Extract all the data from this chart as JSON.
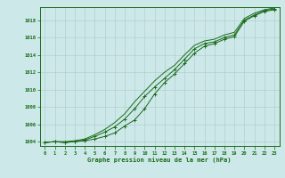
{
  "x": [
    0,
    1,
    2,
    3,
    4,
    5,
    6,
    7,
    8,
    9,
    10,
    11,
    12,
    13,
    14,
    15,
    16,
    17,
    18,
    19,
    20,
    21,
    22,
    23
  ],
  "line1": [
    1003.9,
    1004.0,
    1003.9,
    1004.0,
    1004.1,
    1004.3,
    1004.6,
    1005.0,
    1005.8,
    1006.5,
    1007.8,
    1009.5,
    1010.8,
    1011.8,
    1013.0,
    1014.2,
    1015.0,
    1015.3,
    1015.8,
    1016.1,
    1017.9,
    1018.5,
    1019.0,
    1019.2
  ],
  "line2": [
    1003.9,
    1004.0,
    1003.9,
    1004.0,
    1004.2,
    1004.6,
    1005.1,
    1005.7,
    1006.6,
    1007.8,
    1009.2,
    1010.3,
    1011.3,
    1012.3,
    1013.5,
    1014.7,
    1015.3,
    1015.5,
    1016.0,
    1016.3,
    1018.0,
    1018.6,
    1019.1,
    1019.3
  ],
  "line3": [
    1003.9,
    1004.0,
    1004.0,
    1004.1,
    1004.3,
    1004.8,
    1005.4,
    1006.2,
    1007.2,
    1008.6,
    1009.8,
    1011.0,
    1012.0,
    1012.8,
    1014.0,
    1015.1,
    1015.6,
    1015.8,
    1016.3,
    1016.6,
    1018.2,
    1018.8,
    1019.2,
    1019.4
  ],
  "bg_color": "#cce8e8",
  "grid_color": "#b0c8c8",
  "line_color": "#1a6b1a",
  "xlabel": "Graphe pression niveau de la mer (hPa)",
  "ylim": [
    1003.5,
    1019.5
  ],
  "xlim": [
    -0.5,
    23.5
  ],
  "yticks": [
    1004,
    1006,
    1008,
    1010,
    1012,
    1014,
    1016,
    1018
  ],
  "xticks": [
    0,
    1,
    2,
    3,
    4,
    5,
    6,
    7,
    8,
    9,
    10,
    11,
    12,
    13,
    14,
    15,
    16,
    17,
    18,
    19,
    20,
    21,
    22,
    23
  ],
  "figsize": [
    3.2,
    2.0
  ],
  "dpi": 100
}
